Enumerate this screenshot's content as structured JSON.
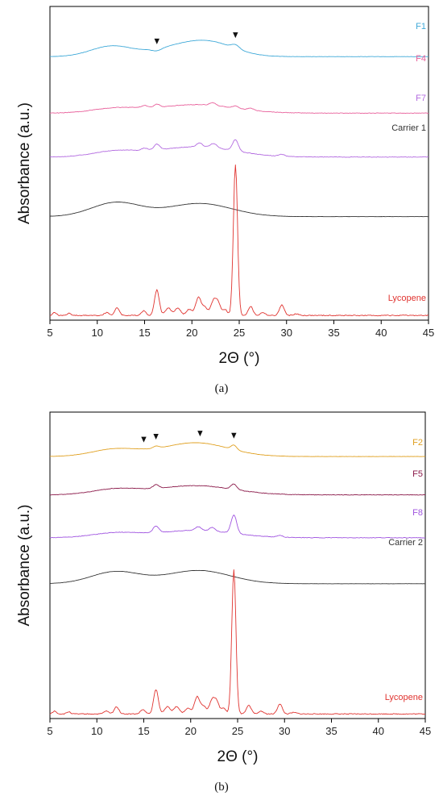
{
  "chart_data": [
    {
      "type": "line",
      "panel_label": "(a)",
      "xlabel": "2Θ (°)",
      "ylabel": "Absorbance (a.u.)",
      "xlim": [
        5,
        45
      ],
      "xticks": [
        5,
        10,
        15,
        20,
        25,
        30,
        35,
        40,
        45
      ],
      "grid": false,
      "markers": [
        16.3,
        24.6
      ],
      "series": [
        {
          "name": "F1",
          "color": "#3fa9d8",
          "offset": 0.84,
          "amp": 0.06,
          "bumps": [
            [
              11.5,
              2.2,
              0.55
            ],
            [
              19.5,
              3.2,
              0.6
            ],
            [
              22.5,
              2.5,
              0.4
            ]
          ],
          "peaks": [
            [
              16.3,
              0.5,
              -0.12
            ],
            [
              24.6,
              0.4,
              0.2
            ]
          ],
          "noise": 0.012
        },
        {
          "name": "F4",
          "color": "#e8609b",
          "offset": 0.66,
          "amp": 0.06,
          "bumps": [
            [
              12,
              2.5,
              0.25
            ],
            [
              20.5,
              4,
              0.45
            ]
          ],
          "peaks": [
            [
              15,
              0.3,
              0.12
            ],
            [
              16.3,
              0.3,
              0.16
            ],
            [
              22.2,
              0.3,
              0.15
            ],
            [
              24.6,
              0.3,
              0.12
            ],
            [
              26.2,
              0.3,
              0.1
            ]
          ],
          "noise": 0.03
        },
        {
          "name": "F7",
          "color": "#b36be0",
          "offset": 0.52,
          "amp": 0.06,
          "bumps": [
            [
              12,
              2.5,
              0.3
            ],
            [
              20.5,
              4,
              0.55
            ]
          ],
          "peaks": [
            [
              15,
              0.3,
              0.12
            ],
            [
              16.3,
              0.3,
              0.3
            ],
            [
              20.8,
              0.3,
              0.2
            ],
            [
              22.3,
              0.35,
              0.22
            ],
            [
              24.6,
              0.3,
              0.6
            ],
            [
              29.5,
              0.3,
              0.1
            ]
          ],
          "noise": 0.03
        },
        {
          "name": "Carrier 1",
          "color": "#333333",
          "offset": 0.33,
          "amp": 0.06,
          "bumps": [
            [
              12,
              2.6,
              0.75
            ],
            [
              20.8,
              3.4,
              0.7
            ]
          ],
          "peaks": [],
          "noise": 0.008
        },
        {
          "name": "Lycopene",
          "color": "#e0332f",
          "offset": 0.015,
          "amp": 0.48,
          "bumps": [],
          "peaks": [
            [
              5.5,
              0.2,
              0.02
            ],
            [
              7,
              0.2,
              0.015
            ],
            [
              11,
              0.25,
              0.02
            ],
            [
              12.1,
              0.25,
              0.05
            ],
            [
              14.9,
              0.25,
              0.03
            ],
            [
              16.3,
              0.25,
              0.17
            ],
            [
              17.5,
              0.3,
              0.05
            ],
            [
              18.5,
              0.3,
              0.05
            ],
            [
              19.7,
              0.3,
              0.04
            ],
            [
              20.7,
              0.3,
              0.12
            ],
            [
              21.4,
              0.25,
              0.05
            ],
            [
              22.3,
              0.3,
              0.1
            ],
            [
              22.8,
              0.25,
              0.07
            ],
            [
              23.5,
              0.25,
              0.04
            ],
            [
              24.6,
              0.22,
              1.0
            ],
            [
              26.2,
              0.25,
              0.06
            ],
            [
              27.5,
              0.25,
              0.02
            ],
            [
              29.5,
              0.25,
              0.07
            ],
            [
              31,
              0.3,
              0.01
            ]
          ],
          "noise": 0.006
        }
      ]
    },
    {
      "type": "line",
      "panel_label": "(b)",
      "xlabel": "2Θ (°)",
      "ylabel": "Absorbance (a.u.)",
      "xlim": [
        5,
        45
      ],
      "xticks": [
        5,
        10,
        15,
        20,
        25,
        30,
        35,
        40,
        45
      ],
      "grid": false,
      "markers": [
        15,
        16.3,
        21,
        24.6
      ],
      "series": [
        {
          "name": "F2",
          "color": "#e0a020",
          "offset": 0.855,
          "amp": 0.06,
          "bumps": [
            [
              12,
              2.5,
              0.4
            ],
            [
              20.5,
              3.5,
              0.75
            ]
          ],
          "peaks": [
            [
              16.3,
              0.3,
              0.12
            ],
            [
              24.6,
              0.3,
              0.25
            ]
          ],
          "noise": 0.01
        },
        {
          "name": "F5",
          "color": "#8b1a4a",
          "offset": 0.73,
          "amp": 0.06,
          "bumps": [
            [
              12,
              2.5,
              0.3
            ],
            [
              20.5,
              4,
              0.5
            ]
          ],
          "peaks": [
            [
              16.3,
              0.3,
              0.2
            ],
            [
              24.6,
              0.3,
              0.3
            ]
          ],
          "noise": 0.03
        },
        {
          "name": "F8",
          "color": "#a055e0",
          "offset": 0.59,
          "amp": 0.06,
          "bumps": [
            [
              12,
              2.5,
              0.25
            ],
            [
              20.5,
              4,
              0.4
            ]
          ],
          "peaks": [
            [
              16.3,
              0.3,
              0.35
            ],
            [
              20.8,
              0.3,
              0.2
            ],
            [
              22.3,
              0.3,
              0.2
            ],
            [
              24.6,
              0.3,
              1.0
            ],
            [
              29.5,
              0.3,
              0.1
            ]
          ],
          "noise": 0.03
        },
        {
          "name": "Carrier 2",
          "color": "#333333",
          "offset": 0.44,
          "amp": 0.06,
          "bumps": [
            [
              12,
              2.6,
              0.65
            ],
            [
              20.8,
              3.4,
              0.72
            ]
          ],
          "peaks": [],
          "noise": 0.008
        },
        {
          "name": "Lycopene",
          "color": "#e0332f",
          "offset": 0.015,
          "amp": 0.47,
          "bumps": [],
          "peaks": [
            [
              5.5,
              0.2,
              0.02
            ],
            [
              7,
              0.2,
              0.015
            ],
            [
              11,
              0.25,
              0.02
            ],
            [
              12.1,
              0.25,
              0.05
            ],
            [
              14.9,
              0.25,
              0.03
            ],
            [
              16.3,
              0.25,
              0.17
            ],
            [
              17.5,
              0.3,
              0.05
            ],
            [
              18.5,
              0.3,
              0.05
            ],
            [
              19.7,
              0.3,
              0.04
            ],
            [
              20.7,
              0.3,
              0.12
            ],
            [
              21.4,
              0.25,
              0.05
            ],
            [
              22.3,
              0.3,
              0.1
            ],
            [
              22.8,
              0.25,
              0.07
            ],
            [
              23.5,
              0.25,
              0.04
            ],
            [
              24.6,
              0.22,
              1.0
            ],
            [
              26.2,
              0.25,
              0.06
            ],
            [
              27.5,
              0.25,
              0.02
            ],
            [
              29.5,
              0.25,
              0.07
            ],
            [
              31,
              0.3,
              0.01
            ]
          ],
          "noise": 0.006
        }
      ]
    }
  ]
}
